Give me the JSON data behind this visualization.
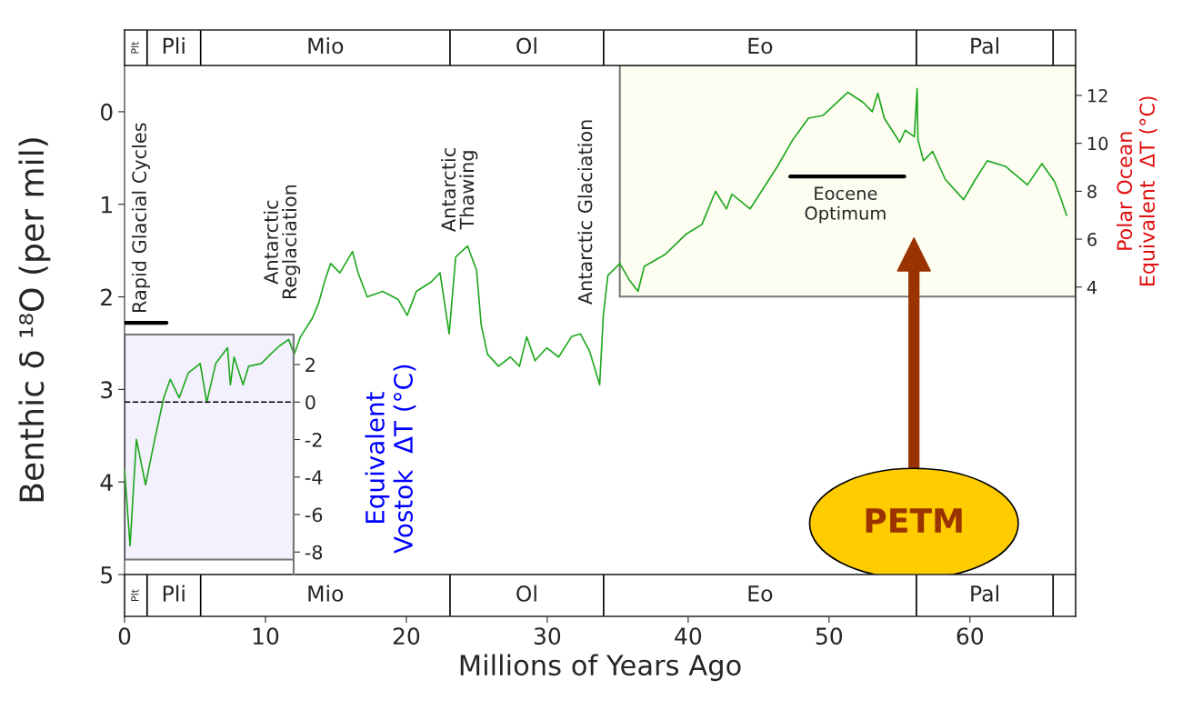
{
  "chart_data": {
    "type": "line",
    "xlabel": "Millions of Years Ago",
    "ylabel": "Benthic δ ¹⁸O (per mil)",
    "y2label": "Polar Ocean\nEquivalent  ΔT (°C)",
    "y3label": "Equivalent\nVostok  ΔT (°C)",
    "xlim": [
      0,
      67.5
    ],
    "xticks": [
      0,
      10,
      20,
      30,
      40,
      50,
      60
    ],
    "ylim": [
      5,
      -0.5
    ],
    "yticks": [
      0,
      1,
      2,
      3,
      4,
      5
    ],
    "y2lim": [
      -8,
      13.25
    ],
    "y2ticks": [
      4,
      6,
      8,
      10,
      12
    ],
    "y3lim": [
      -9.2,
      3.6
    ],
    "y3ticks": [
      -8,
      -6,
      -4,
      -2,
      0,
      2
    ],
    "series": [
      {
        "color": "#21a821",
        "x": [
          0,
          0.39,
          0.84,
          1.49,
          2.14,
          2.78,
          3.24,
          3.88,
          4.53,
          5.37,
          5.83,
          6.47,
          7.31,
          7.51,
          7.77,
          8.41,
          8.8,
          9.71,
          10.36,
          11.0,
          11.65,
          12.04,
          12.49,
          13.33,
          13.79,
          14.24,
          14.63,
          15.28,
          16.18,
          16.57,
          17.22,
          18.32,
          19.42,
          20.06,
          20.71,
          21.75,
          22.39,
          23.04,
          23.5,
          24.34,
          24.98,
          25.31,
          25.76,
          26.54,
          27.38,
          28.03,
          28.54,
          29.13,
          29.97,
          30.81,
          31.72,
          32.36,
          33.01,
          33.72,
          33.98,
          34.3,
          35.15,
          35.79,
          36.44,
          36.89,
          38.38,
          39.87,
          40.97,
          41.94,
          42.72,
          43.11,
          44.4,
          46.34,
          47.44,
          48.54,
          49.58,
          51.33,
          52.43,
          53.07,
          53.46,
          53.92,
          55.02,
          55.4,
          56.05,
          56.25,
          56.31,
          56.7,
          57.35,
          58.25,
          59.55,
          60.39,
          61.23,
          62.52,
          64.08,
          65.11,
          66.02,
          66.41,
          66.86
        ],
        "values": [
          3.87,
          4.69,
          3.54,
          4.03,
          3.54,
          3.09,
          2.89,
          3.09,
          2.82,
          2.72,
          3.14,
          2.72,
          2.55,
          2.95,
          2.65,
          2.95,
          2.75,
          2.72,
          2.62,
          2.53,
          2.46,
          2.62,
          2.43,
          2.23,
          2.06,
          1.81,
          1.64,
          1.74,
          1.51,
          1.74,
          2.0,
          1.94,
          2.03,
          2.2,
          1.94,
          1.84,
          1.74,
          2.4,
          1.57,
          1.45,
          1.71,
          2.3,
          2.62,
          2.75,
          2.65,
          2.75,
          2.43,
          2.69,
          2.55,
          2.65,
          2.43,
          2.4,
          2.59,
          2.95,
          2.2,
          1.77,
          1.64,
          1.81,
          1.94,
          1.67,
          1.54,
          1.32,
          1.22,
          0.86,
          1.05,
          0.89,
          1.05,
          0.59,
          0.3,
          0.07,
          0.04,
          -0.21,
          -0.1,
          0.0,
          -0.2,
          0.07,
          0.33,
          0.2,
          0.27,
          -0.25,
          0.3,
          0.53,
          0.43,
          0.73,
          0.95,
          0.73,
          0.53,
          0.59,
          0.79,
          0.56,
          0.76,
          0.92,
          1.12
        ]
      },
      {
        "color": "#000000",
        "x": [
          0,
          2.98
        ],
        "values": [
          2.28,
          2.28
        ]
      },
      {
        "color": "#000000",
        "x": [
          47.25,
          55.34
        ],
        "values": [
          0.7,
          0.7
        ]
      },
      {
        "axis": "y3",
        "color": "#000000",
        "line_style": "dashed",
        "x": [
          0,
          12
        ],
        "values": [
          0,
          0
        ]
      }
    ],
    "bands": [
      {
        "axis": "x",
        "from": 0,
        "to": 12,
        "color": "#f3f1fd"
      },
      {
        "axis": "x",
        "from": 35.15,
        "to": 67.5,
        "color": "#fdfdf2"
      }
    ],
    "annotations": [
      "Rapid Glacial Cycles",
      "Antarctic\nReglaciation",
      "Antarctic\nThawing",
      "Antarctic Glaciation",
      "Eocene\nOptimum",
      "PETM",
      "Plt",
      "Pli",
      "Mio",
      "Ol",
      "Eo",
      "Pal",
      "Plt",
      "Pli",
      "Mio",
      "Ol",
      "Eo",
      "Pal"
    ]
  }
}
